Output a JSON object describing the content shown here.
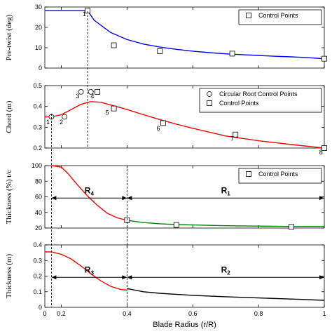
{
  "chart_data": [
    {
      "type": "line",
      "ylabel": "Pre-twist (deg)",
      "xlabel": "",
      "xlim": [
        0,
        1
      ],
      "ylim": [
        0,
        30
      ],
      "xticks": [
        "",
        "",
        "",
        "",
        "",
        ""
      ],
      "yticks": [
        "0",
        "10",
        "20",
        "30"
      ],
      "legend": [
        "Control Points"
      ],
      "legend_position": "top-right",
      "series": [
        {
          "name": "",
          "type": "line",
          "color": "#0000ff",
          "x": [
            0.15,
            0.2,
            0.25,
            0.28,
            0.3,
            0.35,
            0.4,
            0.45,
            0.5,
            0.55,
            0.6,
            0.65,
            0.7,
            0.75,
            0.8,
            0.85,
            0.9,
            0.95,
            1.0
          ],
          "y": [
            28.2,
            28.2,
            28.2,
            28.2,
            23.5,
            17.5,
            14.0,
            11.8,
            10.3,
            9.2,
            8.3,
            7.6,
            7.0,
            6.6,
            6.2,
            5.8,
            5.5,
            5.1,
            4.6
          ]
        },
        {
          "name": "Control Points",
          "type": "square",
          "x": [
            0.28,
            0.36,
            0.5,
            0.72,
            1.0
          ],
          "y": [
            28.2,
            11.2,
            8.3,
            7.1,
            4.6
          ]
        }
      ],
      "annotations": [
        {
          "text": "1",
          "x": 0.27,
          "y": 26.5
        }
      ]
    },
    {
      "type": "line",
      "ylabel": "Chord (m)",
      "xlabel": "",
      "xlim": [
        0,
        1
      ],
      "ylim": [
        0.2,
        0.5
      ],
      "xticks": [
        "",
        "",
        "",
        "",
        "",
        ""
      ],
      "yticks": [
        "0.2",
        "0.3",
        "0.4",
        "0.5"
      ],
      "legend": [
        "Circular Root Control Points",
        "Control Points"
      ],
      "legend_position": "top-right",
      "series": [
        {
          "name": "",
          "type": "line",
          "color": "#ff0000",
          "x": [
            0.15,
            0.17,
            0.2,
            0.23,
            0.26,
            0.29,
            0.32,
            0.35,
            0.4,
            0.45,
            0.5,
            0.55,
            0.6,
            0.7,
            0.8,
            0.9,
            1.0
          ],
          "y": [
            0.35,
            0.35,
            0.36,
            0.385,
            0.41,
            0.423,
            0.42,
            0.407,
            0.385,
            0.36,
            0.337,
            0.315,
            0.295,
            0.258,
            0.235,
            0.217,
            0.2
          ]
        },
        {
          "name": "Circular Root Control Points",
          "type": "circle",
          "x": [
            0.17,
            0.21,
            0.26,
            0.29
          ],
          "y": [
            0.35,
            0.35,
            0.47,
            0.47
          ]
        },
        {
          "name": "Control Points",
          "type": "square",
          "x": [
            0.31,
            0.36,
            0.51,
            0.73,
            1.0
          ],
          "y": [
            0.47,
            0.39,
            0.32,
            0.265,
            0.2
          ]
        }
      ],
      "annotations": [
        {
          "text": "1",
          "x": 0.16,
          "y": 0.325
        },
        {
          "text": "2",
          "x": 0.2,
          "y": 0.325
        },
        {
          "text": "3",
          "x": 0.25,
          "y": 0.45
        },
        {
          "text": "4",
          "x": 0.295,
          "y": 0.45
        },
        {
          "text": "5",
          "x": 0.34,
          "y": 0.37
        },
        {
          "text": "6",
          "x": 0.495,
          "y": 0.295
        },
        {
          "text": "7",
          "x": 0.72,
          "y": 0.245
        },
        {
          "text": "8",
          "x": 0.99,
          "y": 0.18
        }
      ]
    },
    {
      "type": "line",
      "ylabel": "Thickness (%) t/c",
      "xlabel": "",
      "xlim": [
        0,
        1
      ],
      "ylim": [
        20,
        100
      ],
      "xticks": [
        "",
        "",
        "",
        "",
        "",
        ""
      ],
      "yticks": [
        "20",
        "40",
        "60",
        "80",
        "100"
      ],
      "legend": [
        "Control Points"
      ],
      "legend_position": "top-right",
      "series": [
        {
          "name": "",
          "type": "line",
          "color": "#ff0000",
          "x": [
            0.17,
            0.2,
            0.22,
            0.25,
            0.28,
            0.31,
            0.34,
            0.37,
            0.4
          ],
          "y": [
            100,
            98,
            90,
            75,
            61,
            49,
            39,
            33,
            30
          ]
        },
        {
          "name": "",
          "type": "line",
          "color": "#008000",
          "x": [
            0.4,
            0.45,
            0.5,
            0.55,
            0.6,
            0.7,
            0.8,
            0.9,
            1.0
          ],
          "y": [
            30,
            27,
            25.5,
            24.5,
            24,
            23,
            22.5,
            22,
            22
          ]
        },
        {
          "name": "Control Points",
          "type": "square",
          "x": [
            0.4,
            0.55,
            0.9
          ],
          "y": [
            30,
            24,
            21.5
          ]
        }
      ],
      "regions": [
        {
          "label": "R",
          "sub": "4",
          "x_from": 0.17,
          "x_to": 0.4
        },
        {
          "label": "R",
          "sub": "1",
          "x_from": 0.4,
          "x_to": 1.0
        }
      ]
    },
    {
      "type": "line",
      "ylabel": "Thickness (m)",
      "xlabel": "Blade Radius (r/R)",
      "xlim": [
        0,
        1
      ],
      "ylim": [
        0,
        0.4
      ],
      "xticks": [
        "0",
        "0.2",
        "0.4",
        "0.6",
        "0.8",
        "1"
      ],
      "yticks": [
        "0",
        "0.1",
        "0.2",
        "0.3",
        "0.4"
      ],
      "series": [
        {
          "name": "",
          "type": "line",
          "color": "#ff0000",
          "x": [
            0.15,
            0.17,
            0.2,
            0.23,
            0.26,
            0.29,
            0.32,
            0.35,
            0.38,
            0.4
          ],
          "y": [
            0.355,
            0.355,
            0.34,
            0.31,
            0.265,
            0.215,
            0.17,
            0.135,
            0.115,
            0.11
          ]
        },
        {
          "name": "",
          "type": "line",
          "color": "#000000",
          "x": [
            0.4,
            0.45,
            0.5,
            0.6,
            0.7,
            0.8,
            0.9,
            1.0
          ],
          "y": [
            0.12,
            0.1,
            0.09,
            0.077,
            0.068,
            0.06,
            0.053,
            0.045
          ]
        }
      ],
      "regions": [
        {
          "label": "R",
          "sub": "3",
          "x_from": 0.17,
          "x_to": 0.4
        },
        {
          "label": "R",
          "sub": "2",
          "x_from": 0.4,
          "x_to": 1.0
        }
      ]
    }
  ]
}
